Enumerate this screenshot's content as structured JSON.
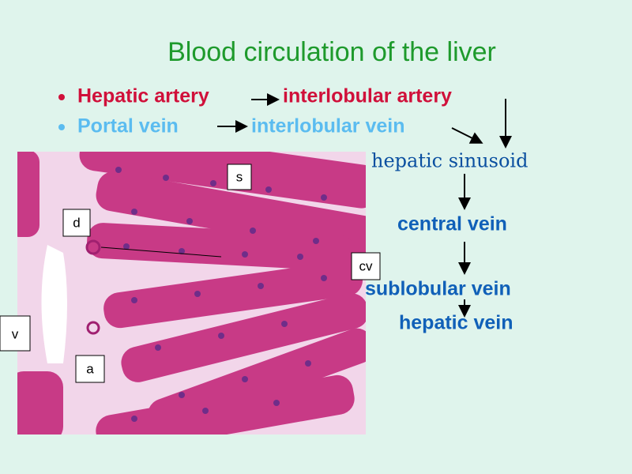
{
  "slide": {
    "title": "Blood circulation of the liver",
    "bullets": [
      {
        "from": "Hepatic artery",
        "to": "interlobular artery"
      },
      {
        "from": "Portal vein",
        "to": "interlobular vein"
      }
    ],
    "flow": [
      "hepatic sinusoid",
      "central vein",
      "sublobular vein",
      "hepatic vein"
    ],
    "image_labels": [
      "s",
      "d",
      "cv",
      "v",
      "a"
    ]
  }
}
